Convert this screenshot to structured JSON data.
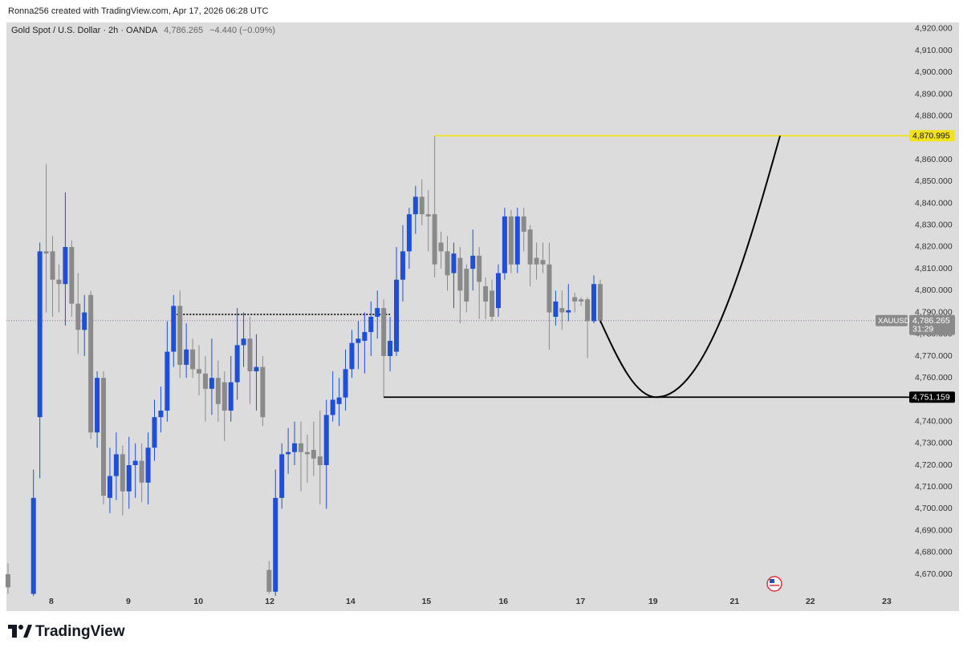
{
  "header": {
    "attribution": "Ronna256 created with TradingView.com, Apr 17, 2026 06:28 UTC",
    "brand": "TradingView"
  },
  "chart_data": {
    "type": "candlestick",
    "title": "Gold Spot / U.S. Dollar · 2h · OANDA",
    "change": "−4.440 (−0.09%)",
    "x": [
      0,
      4,
      5,
      6,
      7,
      8,
      9,
      10,
      11,
      12,
      13,
      14,
      15,
      16,
      17,
      18,
      19,
      20,
      21,
      22,
      23,
      24,
      25,
      26,
      27,
      28,
      29,
      30,
      31,
      32,
      33,
      34,
      35,
      36,
      37,
      38,
      39,
      40,
      41,
      42,
      43,
      44,
      45,
      46,
      47,
      48,
      49,
      50,
      51,
      52,
      53,
      54,
      55,
      56,
      57,
      58,
      59,
      60,
      61,
      62,
      63,
      64,
      65,
      66,
      67,
      68,
      69,
      70,
      71,
      72,
      73,
      74,
      75,
      76,
      77,
      78,
      79,
      80,
      81,
      82,
      83,
      84,
      85,
      86,
      87,
      88,
      89,
      90,
      91,
      92,
      93
    ],
    "open": [
      4670,
      4661,
      4742,
      4818,
      4818,
      4805,
      4803,
      4820,
      4794,
      4782,
      4798,
      4735,
      4760,
      4705,
      4715,
      4725,
      4708,
      4720,
      4722,
      4712,
      4728,
      4742,
      4745,
      4772,
      4793,
      4766,
      4773,
      4764,
      4762,
      4755,
      4760,
      4758,
      4745,
      4758,
      4775,
      4778,
      4763,
      4765,
      4672,
      4662,
      4705,
      4725,
      4726,
      4730,
      4726,
      4727,
      4724,
      4720,
      4743,
      4748,
      4751,
      4764,
      4776,
      4777,
      4781,
      4788,
      4792,
      4770,
      4772,
      4805,
      4818,
      4835,
      4843,
      4835,
      4835,
      4822,
      4818,
      4808,
      4815,
      4810,
      4810,
      4816,
      4802,
      4800,
      4792,
      4808,
      4834,
      4812,
      4834,
      4828,
      4815,
      4814,
      4812,
      4788,
      4792,
      4790,
      4797,
      4796,
      4796,
      4786,
      4803
    ],
    "high": [
      4675,
      4718,
      4822,
      4858,
      4825,
      4812,
      4845,
      4823,
      4808,
      4798,
      4800,
      4763,
      4763,
      4728,
      4735,
      4729,
      4733,
      4730,
      4730,
      4735,
      4750,
      4756,
      4786,
      4798,
      4800,
      4785,
      4778,
      4775,
      4770,
      4778,
      4768,
      4763,
      4770,
      4792,
      4790,
      4788,
      4780,
      4770,
      4676,
      4718,
      4730,
      4737,
      4740,
      4740,
      4734,
      4740,
      4745,
      4750,
      4763,
      4760,
      4773,
      4782,
      4786,
      4790,
      4795,
      4800,
      4796,
      4788,
      4820,
      4830,
      4838,
      4848,
      4851,
      4846,
      4871,
      4827,
      4825,
      4822,
      4820,
      4812,
      4828,
      4820,
      4806,
      4805,
      4812,
      4838,
      4837,
      4838,
      4838,
      4830,
      4822,
      4822,
      4822,
      4800,
      4800,
      4803,
      4799,
      4797,
      4797,
      4807,
      4805
    ],
    "low": [
      4661,
      4660,
      4714,
      4790,
      4788,
      4790,
      4784,
      4788,
      4771,
      4770,
      4732,
      4728,
      4702,
      4698,
      4704,
      4697,
      4700,
      4705,
      4703,
      4702,
      4722,
      4735,
      4740,
      4765,
      4760,
      4760,
      4760,
      4752,
      4740,
      4743,
      4740,
      4731,
      4740,
      4750,
      4765,
      4748,
      4745,
      4738,
      4661,
      4660,
      4700,
      4716,
      4720,
      4708,
      4712,
      4715,
      4702,
      4700,
      4740,
      4738,
      4745,
      4760,
      4764,
      4762,
      4770,
      4778,
      4751,
      4763,
      4770,
      4795,
      4810,
      4826,
      4830,
      4818,
      4806,
      4810,
      4800,
      4792,
      4785,
      4790,
      4800,
      4787,
      4787,
      4786,
      4788,
      4805,
      4808,
      4808,
      4818,
      4802,
      4805,
      4808,
      4773,
      4784,
      4782,
      4786,
      4790,
      4793,
      4769,
      4785,
      4785
    ],
    "close": [
      4664,
      4705,
      4818,
      4817,
      4805,
      4803,
      4820,
      4794,
      4782,
      4790,
      4735,
      4760,
      4706,
      4715,
      4725,
      4708,
      4720,
      4722,
      4712,
      4728,
      4742,
      4745,
      4772,
      4793,
      4766,
      4773,
      4764,
      4762,
      4755,
      4760,
      4748,
      4745,
      4758,
      4775,
      4778,
      4763,
      4765,
      4742,
      4662,
      4705,
      4725,
      4726,
      4730,
      4726,
      4725,
      4723,
      4720,
      4743,
      4750,
      4751,
      4764,
      4776,
      4778,
      4781,
      4788,
      4792,
      4770,
      4777,
      4805,
      4818,
      4835,
      4843,
      4835,
      4834,
      4812,
      4818,
      4807,
      4817,
      4800,
      4795,
      4816,
      4804,
      4795,
      4788,
      4808,
      4834,
      4812,
      4834,
      4827,
      4812,
      4812,
      4812,
      4790,
      4795,
      4790,
      4791,
      4795,
      4795,
      4786,
      4803,
      4786.265
    ],
    "up_color": "#1e4fd6",
    "down_color": "#8a8a8a",
    "xlim": [
      -0.25,
      141.15
    ],
    "xticks": [
      {
        "value": 6.8,
        "label": "8"
      },
      {
        "value": 18.9,
        "label": "9"
      },
      {
        "value": 29.9,
        "label": "10"
      },
      {
        "value": 41.1,
        "label": "12"
      },
      {
        "value": 53.8,
        "label": "14"
      },
      {
        "value": 65.7,
        "label": "15"
      },
      {
        "value": 77.8,
        "label": "16"
      },
      {
        "value": 89.9,
        "label": "17"
      },
      {
        "value": 101.3,
        "label": "19"
      },
      {
        "value": 114.1,
        "label": "21"
      },
      {
        "value": 126.0,
        "label": "22"
      },
      {
        "value": 138.0,
        "label": "23"
      }
    ],
    "ylim": [
      4661.2,
      4922.9
    ],
    "yticks": [
      {
        "value": 4920,
        "label": "4,920.000"
      },
      {
        "value": 4910,
        "label": "4,910.000"
      },
      {
        "value": 4900,
        "label": "4,900.000"
      },
      {
        "value": 4890,
        "label": "4,890.000"
      },
      {
        "value": 4880,
        "label": "4,880.000"
      },
      {
        "value": 4860,
        "label": "4,860.000"
      },
      {
        "value": 4850,
        "label": "4,850.000"
      },
      {
        "value": 4840,
        "label": "4,840.000"
      },
      {
        "value": 4830,
        "label": "4,830.000"
      },
      {
        "value": 4820,
        "label": "4,820.000"
      },
      {
        "value": 4810,
        "label": "4,810.000"
      },
      {
        "value": 4800,
        "label": "4,800.000"
      },
      {
        "value": 4790,
        "label": "4,790.000"
      },
      {
        "value": 4780,
        "label": "4,780.000"
      },
      {
        "value": 4770,
        "label": "4,770.000"
      },
      {
        "value": 4760,
        "label": "4,760.000"
      },
      {
        "value": 4740,
        "label": "4,740.000"
      },
      {
        "value": 4730,
        "label": "4,730.000"
      },
      {
        "value": 4720,
        "label": "4,720.000"
      },
      {
        "value": 4710,
        "label": "4,710.000"
      },
      {
        "value": 4700,
        "label": "4,700.000"
      },
      {
        "value": 4690,
        "label": "4,690.000"
      },
      {
        "value": 4680,
        "label": "4,680.000"
      },
      {
        "value": 4670,
        "label": "4,670.000"
      }
    ],
    "grid": false,
    "levels": [
      {
        "value": 4870.995,
        "label": "4,870.995",
        "color": "#f2e21c",
        "x_start": 67
      },
      {
        "value": 4751.159,
        "label": "4,751.159",
        "color": "#000000",
        "x_start": 59
      }
    ],
    "dotted_level": {
      "value": 4789.1,
      "x_range": [
        26,
        60
      ],
      "color": "#000000"
    },
    "last": {
      "symbol": "XAUUSD",
      "value": 4786.265,
      "label": "4,786.265",
      "countdown": "31:29",
      "color": "#9b6fb0"
    }
  }
}
